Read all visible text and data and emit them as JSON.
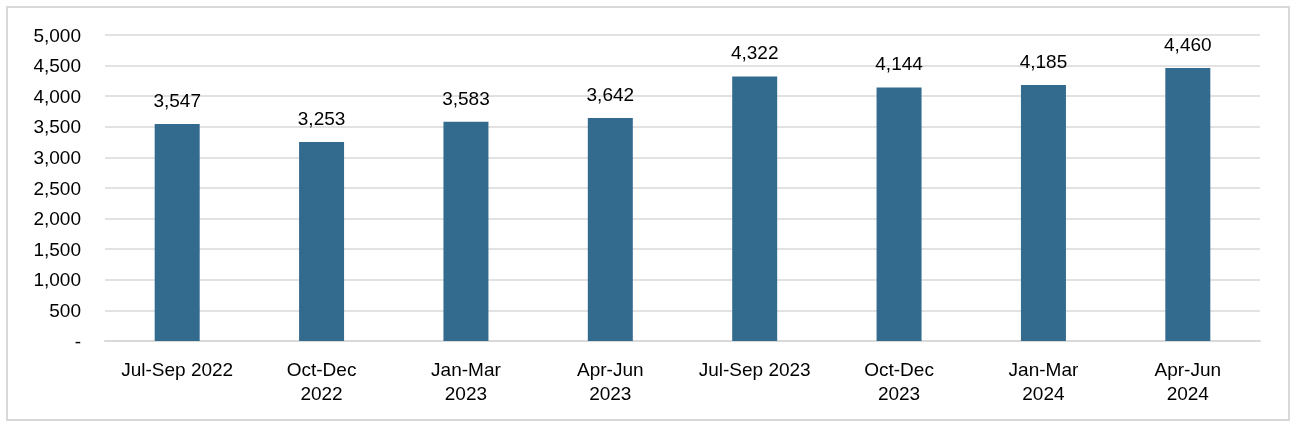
{
  "chart_data": {
    "type": "bar",
    "categories": [
      "Jul-Sep 2022",
      "Oct-Dec\n2022",
      "Jan-Mar\n2023",
      "Apr-Jun\n2023",
      "Jul-Sep 2023",
      "Oct-Dec\n2023",
      "Jan-Mar\n2024",
      "Apr-Jun\n2024"
    ],
    "values": [
      3547,
      3253,
      3583,
      3642,
      4322,
      4144,
      4185,
      4460
    ],
    "color": "#336b8f",
    "ylim": [
      0,
      5000
    ],
    "yticks": [
      {
        "value": 0,
        "label": "-"
      },
      {
        "value": 500,
        "label": "500"
      },
      {
        "value": 1000,
        "label": "1,000"
      },
      {
        "value": 1500,
        "label": "1,500"
      },
      {
        "value": 2000,
        "label": "2,000"
      },
      {
        "value": 2500,
        "label": "2,500"
      },
      {
        "value": 3000,
        "label": "3,000"
      },
      {
        "value": 3500,
        "label": "3,500"
      },
      {
        "value": 4000,
        "label": "4,000"
      },
      {
        "value": 4500,
        "label": "4,500"
      },
      {
        "value": 5000,
        "label": "5,000"
      }
    ],
    "grid": "y",
    "value_labels": [
      "3,547",
      "3,253",
      "3,583",
      "3,642",
      "4,322",
      "4,144",
      "4,185",
      "4,460"
    ]
  }
}
